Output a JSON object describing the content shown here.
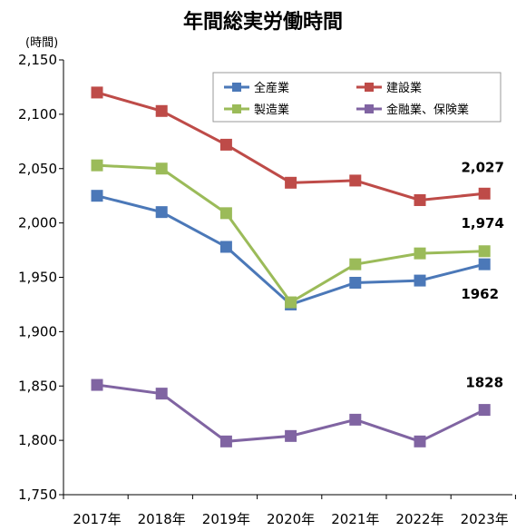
{
  "chart_data": {
    "type": "line",
    "title": "年間総実労働時間",
    "unit_label": "(時間)",
    "categories": [
      "2017年",
      "2018年",
      "2019年",
      "2020年",
      "2021年",
      "2022年",
      "2023年"
    ],
    "ylim": [
      1750,
      2150
    ],
    "yticks": [
      1750,
      1800,
      1850,
      1900,
      1950,
      2000,
      2050,
      2100,
      2150
    ],
    "ytick_labels": [
      "1,750",
      "1,800",
      "1,850",
      "1,900",
      "1,950",
      "2,000",
      "2,050",
      "2,100",
      "2,150"
    ],
    "grid": false,
    "legend_placement": "top-right",
    "series": [
      {
        "name": "全産業",
        "color": "#4B78B8",
        "values": [
          2025,
          2010,
          1978,
          1925,
          1945,
          1947,
          1962
        ],
        "end_label": "1962"
      },
      {
        "name": "建設業",
        "color": "#BE4B48",
        "values": [
          2120,
          2103,
          2072,
          2037,
          2039,
          2021,
          2027
        ],
        "end_label": "2,027"
      },
      {
        "name": "製造業",
        "color": "#9BBB59",
        "values": [
          2053,
          2050,
          2009,
          1927,
          1962,
          1972,
          1974
        ],
        "end_label": "1,974"
      },
      {
        "name": "金融業、保険業",
        "color": "#8064A2",
        "values": [
          1851,
          1843,
          1799,
          1804,
          1819,
          1799,
          1828
        ],
        "end_label": "1828"
      }
    ]
  }
}
